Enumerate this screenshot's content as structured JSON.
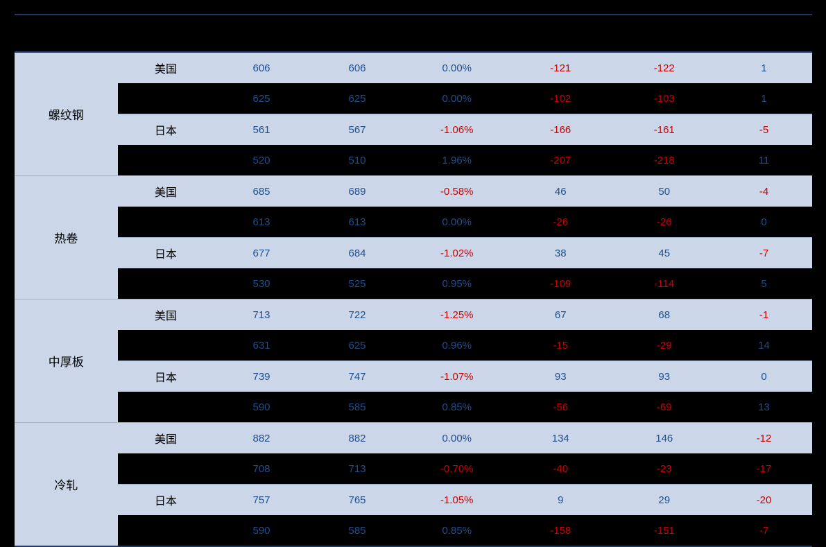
{
  "table": {
    "type": "table",
    "colors": {
      "light_row_bg": "#cbd7e9",
      "dark_row_bg": "#000000",
      "positive_text": "#1f4e8c",
      "negative_text": "#cc0000",
      "border": "#1a3a6e"
    },
    "columns": [
      "",
      "",
      "",
      "",
      "",
      "",
      "",
      ""
    ],
    "groups": [
      {
        "category": "螺纹钢",
        "rows": [
          {
            "country": "美国",
            "band": "light",
            "cells": [
              {
                "v": "606",
                "neg": false
              },
              {
                "v": "606",
                "neg": false
              },
              {
                "v": "0.00%",
                "neg": false
              },
              {
                "v": "-121",
                "neg": true
              },
              {
                "v": "-122",
                "neg": true
              },
              {
                "v": "1",
                "neg": false
              }
            ]
          },
          {
            "country": "",
            "band": "dark",
            "cells": [
              {
                "v": "625",
                "neg": false
              },
              {
                "v": "625",
                "neg": false
              },
              {
                "v": "0.00%",
                "neg": false
              },
              {
                "v": "-102",
                "neg": true
              },
              {
                "v": "-103",
                "neg": true
              },
              {
                "v": "1",
                "neg": false
              }
            ]
          },
          {
            "country": "日本",
            "band": "light",
            "cells": [
              {
                "v": "561",
                "neg": false
              },
              {
                "v": "567",
                "neg": false
              },
              {
                "v": "-1.06%",
                "neg": true
              },
              {
                "v": "-166",
                "neg": true
              },
              {
                "v": "-161",
                "neg": true
              },
              {
                "v": "-5",
                "neg": true
              }
            ]
          },
          {
            "country": "",
            "band": "dark",
            "cells": [
              {
                "v": "520",
                "neg": false
              },
              {
                "v": "510",
                "neg": false
              },
              {
                "v": "1.96%",
                "neg": false
              },
              {
                "v": "-207",
                "neg": true
              },
              {
                "v": "-218",
                "neg": true
              },
              {
                "v": "11",
                "neg": false
              }
            ]
          }
        ]
      },
      {
        "category": "热卷",
        "rows": [
          {
            "country": "美国",
            "band": "light",
            "cells": [
              {
                "v": "685",
                "neg": false
              },
              {
                "v": "689",
                "neg": false
              },
              {
                "v": "-0.58%",
                "neg": true
              },
              {
                "v": "46",
                "neg": false
              },
              {
                "v": "50",
                "neg": false
              },
              {
                "v": "-4",
                "neg": true
              }
            ]
          },
          {
            "country": "",
            "band": "dark",
            "cells": [
              {
                "v": "613",
                "neg": false
              },
              {
                "v": "613",
                "neg": false
              },
              {
                "v": "0.00%",
                "neg": false
              },
              {
                "v": "-26",
                "neg": true
              },
              {
                "v": "-26",
                "neg": true
              },
              {
                "v": "0",
                "neg": false
              }
            ]
          },
          {
            "country": "日本",
            "band": "light",
            "cells": [
              {
                "v": "677",
                "neg": false
              },
              {
                "v": "684",
                "neg": false
              },
              {
                "v": "-1.02%",
                "neg": true
              },
              {
                "v": "38",
                "neg": false
              },
              {
                "v": "45",
                "neg": false
              },
              {
                "v": "-7",
                "neg": true
              }
            ]
          },
          {
            "country": "",
            "band": "dark",
            "cells": [
              {
                "v": "530",
                "neg": false
              },
              {
                "v": "525",
                "neg": false
              },
              {
                "v": "0.95%",
                "neg": false
              },
              {
                "v": "-109",
                "neg": true
              },
              {
                "v": "-114",
                "neg": true
              },
              {
                "v": "5",
                "neg": false
              }
            ]
          }
        ]
      },
      {
        "category": "中厚板",
        "rows": [
          {
            "country": "美国",
            "band": "light",
            "cells": [
              {
                "v": "713",
                "neg": false
              },
              {
                "v": "722",
                "neg": false
              },
              {
                "v": "-1.25%",
                "neg": true
              },
              {
                "v": "67",
                "neg": false
              },
              {
                "v": "68",
                "neg": false
              },
              {
                "v": "-1",
                "neg": true
              }
            ]
          },
          {
            "country": "",
            "band": "dark",
            "cells": [
              {
                "v": "631",
                "neg": false
              },
              {
                "v": "625",
                "neg": false
              },
              {
                "v": "0.96%",
                "neg": false
              },
              {
                "v": "-15",
                "neg": true
              },
              {
                "v": "-29",
                "neg": true
              },
              {
                "v": "14",
                "neg": false
              }
            ]
          },
          {
            "country": "日本",
            "band": "light",
            "cells": [
              {
                "v": "739",
                "neg": false
              },
              {
                "v": "747",
                "neg": false
              },
              {
                "v": "-1.07%",
                "neg": true
              },
              {
                "v": "93",
                "neg": false
              },
              {
                "v": "93",
                "neg": false
              },
              {
                "v": "0",
                "neg": false
              }
            ]
          },
          {
            "country": "",
            "band": "dark",
            "cells": [
              {
                "v": "590",
                "neg": false
              },
              {
                "v": "585",
                "neg": false
              },
              {
                "v": "0.85%",
                "neg": false
              },
              {
                "v": "-56",
                "neg": true
              },
              {
                "v": "-69",
                "neg": true
              },
              {
                "v": "13",
                "neg": false
              }
            ]
          }
        ]
      },
      {
        "category": "冷轧",
        "rows": [
          {
            "country": "美国",
            "band": "light",
            "cells": [
              {
                "v": "882",
                "neg": false
              },
              {
                "v": "882",
                "neg": false
              },
              {
                "v": "0.00%",
                "neg": false
              },
              {
                "v": "134",
                "neg": false
              },
              {
                "v": "146",
                "neg": false
              },
              {
                "v": "-12",
                "neg": true
              }
            ]
          },
          {
            "country": "",
            "band": "dark",
            "cells": [
              {
                "v": "708",
                "neg": false
              },
              {
                "v": "713",
                "neg": false
              },
              {
                "v": "-0.70%",
                "neg": true
              },
              {
                "v": "-40",
                "neg": true
              },
              {
                "v": "-23",
                "neg": true
              },
              {
                "v": "-17",
                "neg": true
              }
            ]
          },
          {
            "country": "日本",
            "band": "light",
            "cells": [
              {
                "v": "757",
                "neg": false
              },
              {
                "v": "765",
                "neg": false
              },
              {
                "v": "-1.05%",
                "neg": true
              },
              {
                "v": "9",
                "neg": false
              },
              {
                "v": "29",
                "neg": false
              },
              {
                "v": "-20",
                "neg": true
              }
            ]
          },
          {
            "country": "",
            "band": "dark",
            "cells": [
              {
                "v": "590",
                "neg": false
              },
              {
                "v": "585",
                "neg": false
              },
              {
                "v": "0.85%",
                "neg": false
              },
              {
                "v": "-158",
                "neg": true
              },
              {
                "v": "-151",
                "neg": true
              },
              {
                "v": "-7",
                "neg": true
              }
            ]
          }
        ]
      }
    ]
  }
}
